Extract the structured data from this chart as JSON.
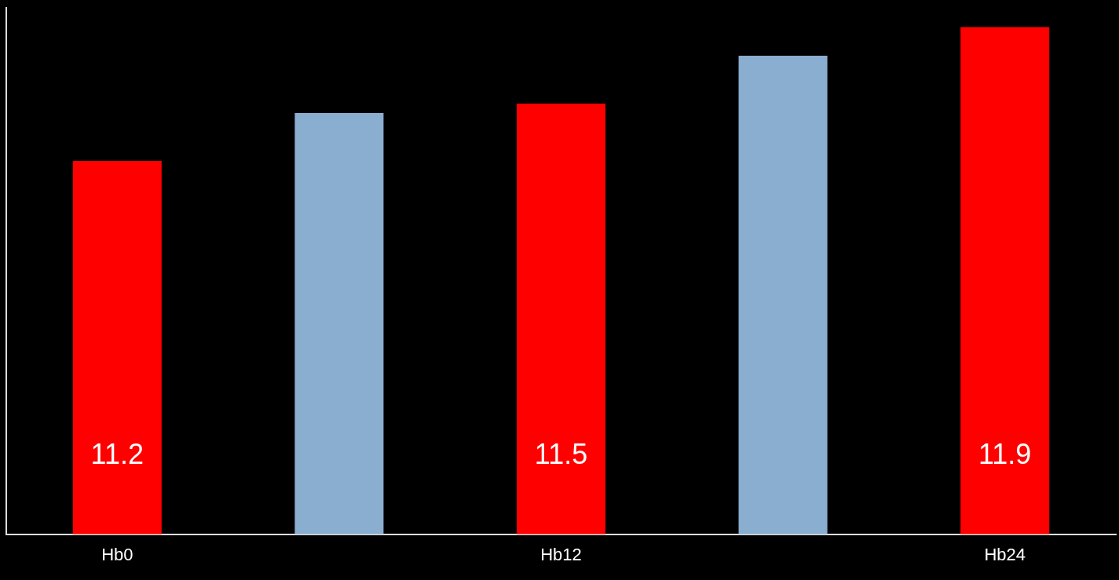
{
  "chart_data": {
    "type": "bar",
    "categories": [
      "Hb0",
      null,
      "Hb12",
      null,
      "Hb24"
    ],
    "values": [
      11.2,
      11.45,
      11.5,
      11.75,
      11.9
    ],
    "colors": [
      "#ff0000",
      "#8aaed0",
      "#ff0000",
      "#8aaed0",
      "#ff0000"
    ],
    "value_labels": [
      "11.2",
      null,
      "11.5",
      null,
      "11.9"
    ],
    "ylim": [
      9.25,
      12
    ],
    "tick_labels": "x",
    "grid": false,
    "legend": false
  }
}
